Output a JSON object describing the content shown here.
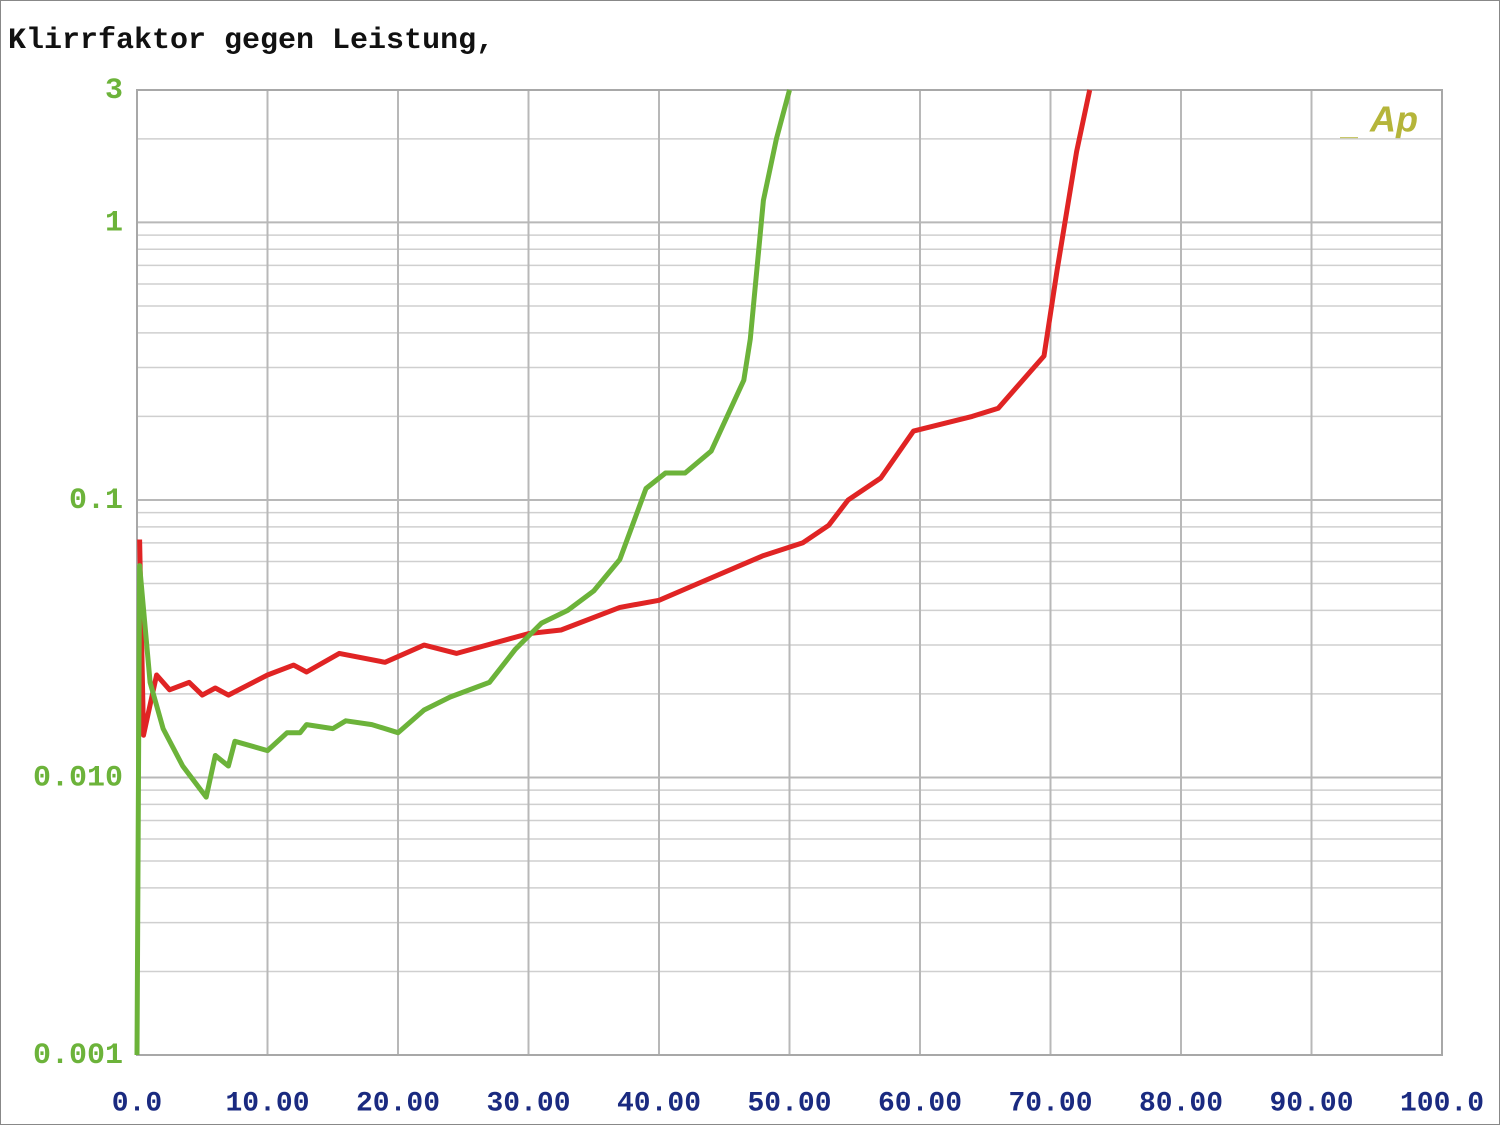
{
  "chart_data": {
    "type": "line",
    "title": "Klirrfaktor gegen Leistung,",
    "annotation": "Ap",
    "log_y": true,
    "grid": true,
    "xlim": [
      0,
      100
    ],
    "ylim": [
      0.001,
      3
    ],
    "xticks": [
      {
        "value": 0,
        "label": "0.0"
      },
      {
        "value": 10,
        "label": "10.00"
      },
      {
        "value": 20,
        "label": "20.00"
      },
      {
        "value": 30,
        "label": "30.00"
      },
      {
        "value": 40,
        "label": "40.00"
      },
      {
        "value": 50,
        "label": "50.00"
      },
      {
        "value": 60,
        "label": "60.00"
      },
      {
        "value": 70,
        "label": "70.00"
      },
      {
        "value": 80,
        "label": "80.00"
      },
      {
        "value": 90,
        "label": "90.00"
      },
      {
        "value": 100,
        "label": "100.0"
      }
    ],
    "yticks": [
      0.001,
      {
        "value": 0.01,
        "label": "0.010"
      },
      0.1,
      1,
      3
    ],
    "series": [
      {
        "color": "#e02424",
        "x": [
          0.2,
          0.5,
          1.5,
          2.5,
          4,
          5,
          6,
          7,
          10,
          12,
          13,
          15.5,
          19,
          22,
          24.5,
          30,
          32.5,
          37,
          40,
          43,
          48,
          51,
          53,
          54.5,
          57,
          59.5,
          64,
          66,
          69.5,
          70.5,
          72,
          73
        ],
        "values": [
          0.072,
          0.0142,
          0.0234,
          0.0207,
          0.022,
          0.0198,
          0.021,
          0.0198,
          0.0234,
          0.0254,
          0.024,
          0.028,
          0.026,
          0.03,
          0.028,
          0.033,
          0.034,
          0.041,
          0.0435,
          0.05,
          0.063,
          0.07,
          0.081,
          0.1,
          0.12,
          0.177,
          0.2,
          0.214,
          0.33,
          0.67,
          1.8,
          3
        ]
      },
      {
        "color": "#6cb33a",
        "x": [
          0,
          0.2,
          1,
          2,
          3.5,
          5.3,
          6,
          7,
          7.5,
          10,
          11.5,
          12.5,
          13,
          15,
          16,
          18,
          20,
          22,
          24,
          27,
          29,
          31,
          33,
          35,
          37,
          39,
          40.5,
          42,
          44,
          46.5,
          47,
          48,
          49,
          50
        ],
        "values": [
          0.001,
          0.058,
          0.022,
          0.015,
          0.011,
          0.0085,
          0.012,
          0.011,
          0.0135,
          0.0125,
          0.0145,
          0.0145,
          0.0155,
          0.015,
          0.016,
          0.0155,
          0.0145,
          0.0175,
          0.0195,
          0.022,
          0.029,
          0.036,
          0.04,
          0.047,
          0.061,
          0.11,
          0.125,
          0.125,
          0.15,
          0.27,
          0.38,
          1.2,
          2,
          3
        ]
      }
    ]
  }
}
